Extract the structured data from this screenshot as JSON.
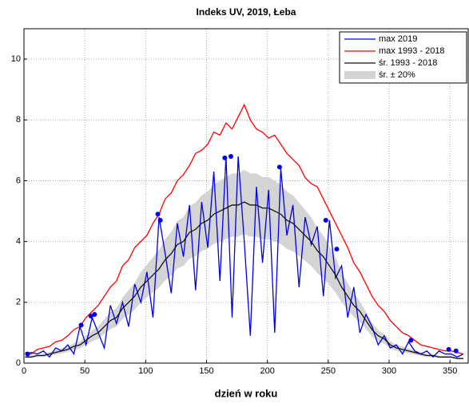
{
  "chart_data": {
    "type": "line",
    "title": "Indeks UV, 2019, Łeba",
    "xlabel": "dzień w roku",
    "x": [
      1,
      6,
      11,
      16,
      21,
      26,
      31,
      36,
      41,
      46,
      51,
      56,
      61,
      66,
      71,
      76,
      81,
      86,
      91,
      96,
      101,
      106,
      111,
      116,
      121,
      126,
      131,
      136,
      141,
      146,
      151,
      156,
      161,
      166,
      171,
      176,
      181,
      186,
      191,
      196,
      201,
      206,
      211,
      216,
      221,
      226,
      231,
      236,
      241,
      246,
      251,
      256,
      261,
      266,
      271,
      276,
      281,
      286,
      291,
      296,
      301,
      306,
      311,
      316,
      321,
      326,
      331,
      336,
      341,
      346,
      351,
      356,
      361
    ],
    "band": {
      "name": "śr. ± 20%",
      "color": "#d4d4d4",
      "lower": [
        0.16,
        0.16,
        0.2,
        0.2,
        0.24,
        0.28,
        0.32,
        0.36,
        0.44,
        0.48,
        0.6,
        0.72,
        0.8,
        0.96,
        1.12,
        1.2,
        1.44,
        1.6,
        1.76,
        2,
        2.16,
        2.32,
        2.48,
        2.72,
        2.88,
        3.12,
        3.2,
        3.44,
        3.52,
        3.68,
        3.76,
        3.92,
        4,
        4.08,
        4.16,
        4.16,
        4.24,
        4.16,
        4.16,
        4.08,
        4.08,
        4,
        3.92,
        3.76,
        3.68,
        3.52,
        3.36,
        3.2,
        2.96,
        2.8,
        2.56,
        2.32,
        2,
        1.76,
        1.52,
        1.36,
        1.12,
        0.88,
        0.72,
        0.64,
        0.48,
        0.4,
        0.36,
        0.32,
        0.28,
        0.24,
        0.2,
        0.2,
        0.16,
        0.16,
        0.16,
        0.12,
        0.12
      ],
      "upper": [
        0.24,
        0.24,
        0.3,
        0.3,
        0.36,
        0.42,
        0.48,
        0.54,
        0.66,
        0.72,
        0.9,
        1.08,
        1.2,
        1.44,
        1.68,
        1.8,
        2.16,
        2.4,
        2.64,
        3,
        3.24,
        3.48,
        3.72,
        4.08,
        4.32,
        4.68,
        4.8,
        5.16,
        5.28,
        5.52,
        5.64,
        5.88,
        6,
        6.12,
        6.24,
        6.24,
        6.36,
        6.24,
        6.24,
        6.12,
        6.12,
        6,
        5.88,
        5.64,
        5.52,
        5.28,
        5.04,
        4.8,
        4.44,
        4.2,
        3.84,
        3.48,
        3,
        2.64,
        2.28,
        2.04,
        1.68,
        1.32,
        1.08,
        0.96,
        0.72,
        0.6,
        0.54,
        0.48,
        0.42,
        0.36,
        0.3,
        0.3,
        0.24,
        0.24,
        0.24,
        0.18,
        0.18
      ]
    },
    "series": [
      {
        "name": "max 2019",
        "color": "#0000ee",
        "values": [
          0.3,
          0.35,
          0.3,
          0.4,
          0.2,
          0.5,
          0.4,
          0.6,
          0.3,
          1.2,
          0.6,
          1.5,
          1.0,
          0.5,
          1.9,
          1.3,
          2.0,
          1.2,
          2.6,
          2.0,
          3.0,
          1.5,
          4.8,
          3.6,
          2.3,
          4.6,
          3.5,
          5.2,
          2.4,
          5.3,
          3.8,
          6.3,
          2.7,
          6.8,
          1.5,
          6.8,
          4.0,
          0.9,
          5.8,
          3.3,
          5.7,
          1.0,
          6.4,
          4.2,
          5.2,
          2.5,
          4.8,
          3.9,
          4.5,
          2.2,
          4.7,
          2.8,
          3.2,
          1.5,
          2.5,
          1.0,
          1.6,
          1.2,
          0.6,
          0.9,
          0.5,
          0.6,
          0.3,
          0.7,
          0.4,
          0.3,
          0.4,
          0.2,
          0.4,
          0.3,
          0.3,
          0.2,
          0.3
        ]
      },
      {
        "name": "max 1993 - 2018",
        "color": "#ff0000",
        "values": [
          0.35,
          0.3,
          0.45,
          0.5,
          0.55,
          0.7,
          0.75,
          0.9,
          1.1,
          1.2,
          1.5,
          1.7,
          1.9,
          2.2,
          2.5,
          2.7,
          3.2,
          3.4,
          3.8,
          4.0,
          4.2,
          4.6,
          4.9,
          5.4,
          5.6,
          6.0,
          6.2,
          6.5,
          6.9,
          7.0,
          7.2,
          7.6,
          7.5,
          7.9,
          7.7,
          8.1,
          8.5,
          8.0,
          7.7,
          7.6,
          7.4,
          7.5,
          7.2,
          6.9,
          6.7,
          6.5,
          6.1,
          5.9,
          5.8,
          5.4,
          5.0,
          4.6,
          4.2,
          3.8,
          3.3,
          3.0,
          2.6,
          2.2,
          1.9,
          1.7,
          1.4,
          1.2,
          1.0,
          0.9,
          0.75,
          0.6,
          0.55,
          0.5,
          0.45,
          0.4,
          0.4,
          0.35,
          0.3
        ]
      },
      {
        "name": "śr. 1993 - 2018",
        "color": "#111111",
        "values": [
          0.2,
          0.2,
          0.25,
          0.25,
          0.3,
          0.35,
          0.4,
          0.45,
          0.55,
          0.6,
          0.75,
          0.9,
          1.0,
          1.2,
          1.4,
          1.5,
          1.8,
          2.0,
          2.2,
          2.5,
          2.7,
          2.9,
          3.1,
          3.4,
          3.6,
          3.9,
          4.0,
          4.3,
          4.4,
          4.6,
          4.7,
          4.9,
          5.0,
          5.1,
          5.2,
          5.2,
          5.3,
          5.2,
          5.2,
          5.1,
          5.1,
          5.0,
          4.9,
          4.7,
          4.6,
          4.4,
          4.2,
          4.0,
          3.7,
          3.5,
          3.2,
          2.9,
          2.5,
          2.2,
          1.9,
          1.7,
          1.4,
          1.1,
          0.9,
          0.8,
          0.6,
          0.5,
          0.45,
          0.4,
          0.35,
          0.3,
          0.25,
          0.25,
          0.2,
          0.2,
          0.2,
          0.15,
          0.15
        ]
      }
    ],
    "markers": {
      "color": "#0000ee",
      "x": [
        3,
        47,
        55,
        58,
        110,
        112,
        165,
        170,
        210,
        248,
        257,
        318,
        349,
        355
      ],
      "values": [
        0.3,
        1.25,
        1.55,
        1.6,
        4.9,
        4.7,
        6.75,
        6.8,
        6.45,
        4.7,
        3.75,
        0.75,
        0.45,
        0.4
      ]
    },
    "xlim": [
      0,
      365
    ],
    "xticks": [
      0,
      50,
      100,
      150,
      200,
      250,
      300,
      350
    ],
    "ylim": [
      0,
      11
    ],
    "yticks": [
      0,
      2,
      4,
      6,
      8,
      10
    ],
    "grid": true
  }
}
